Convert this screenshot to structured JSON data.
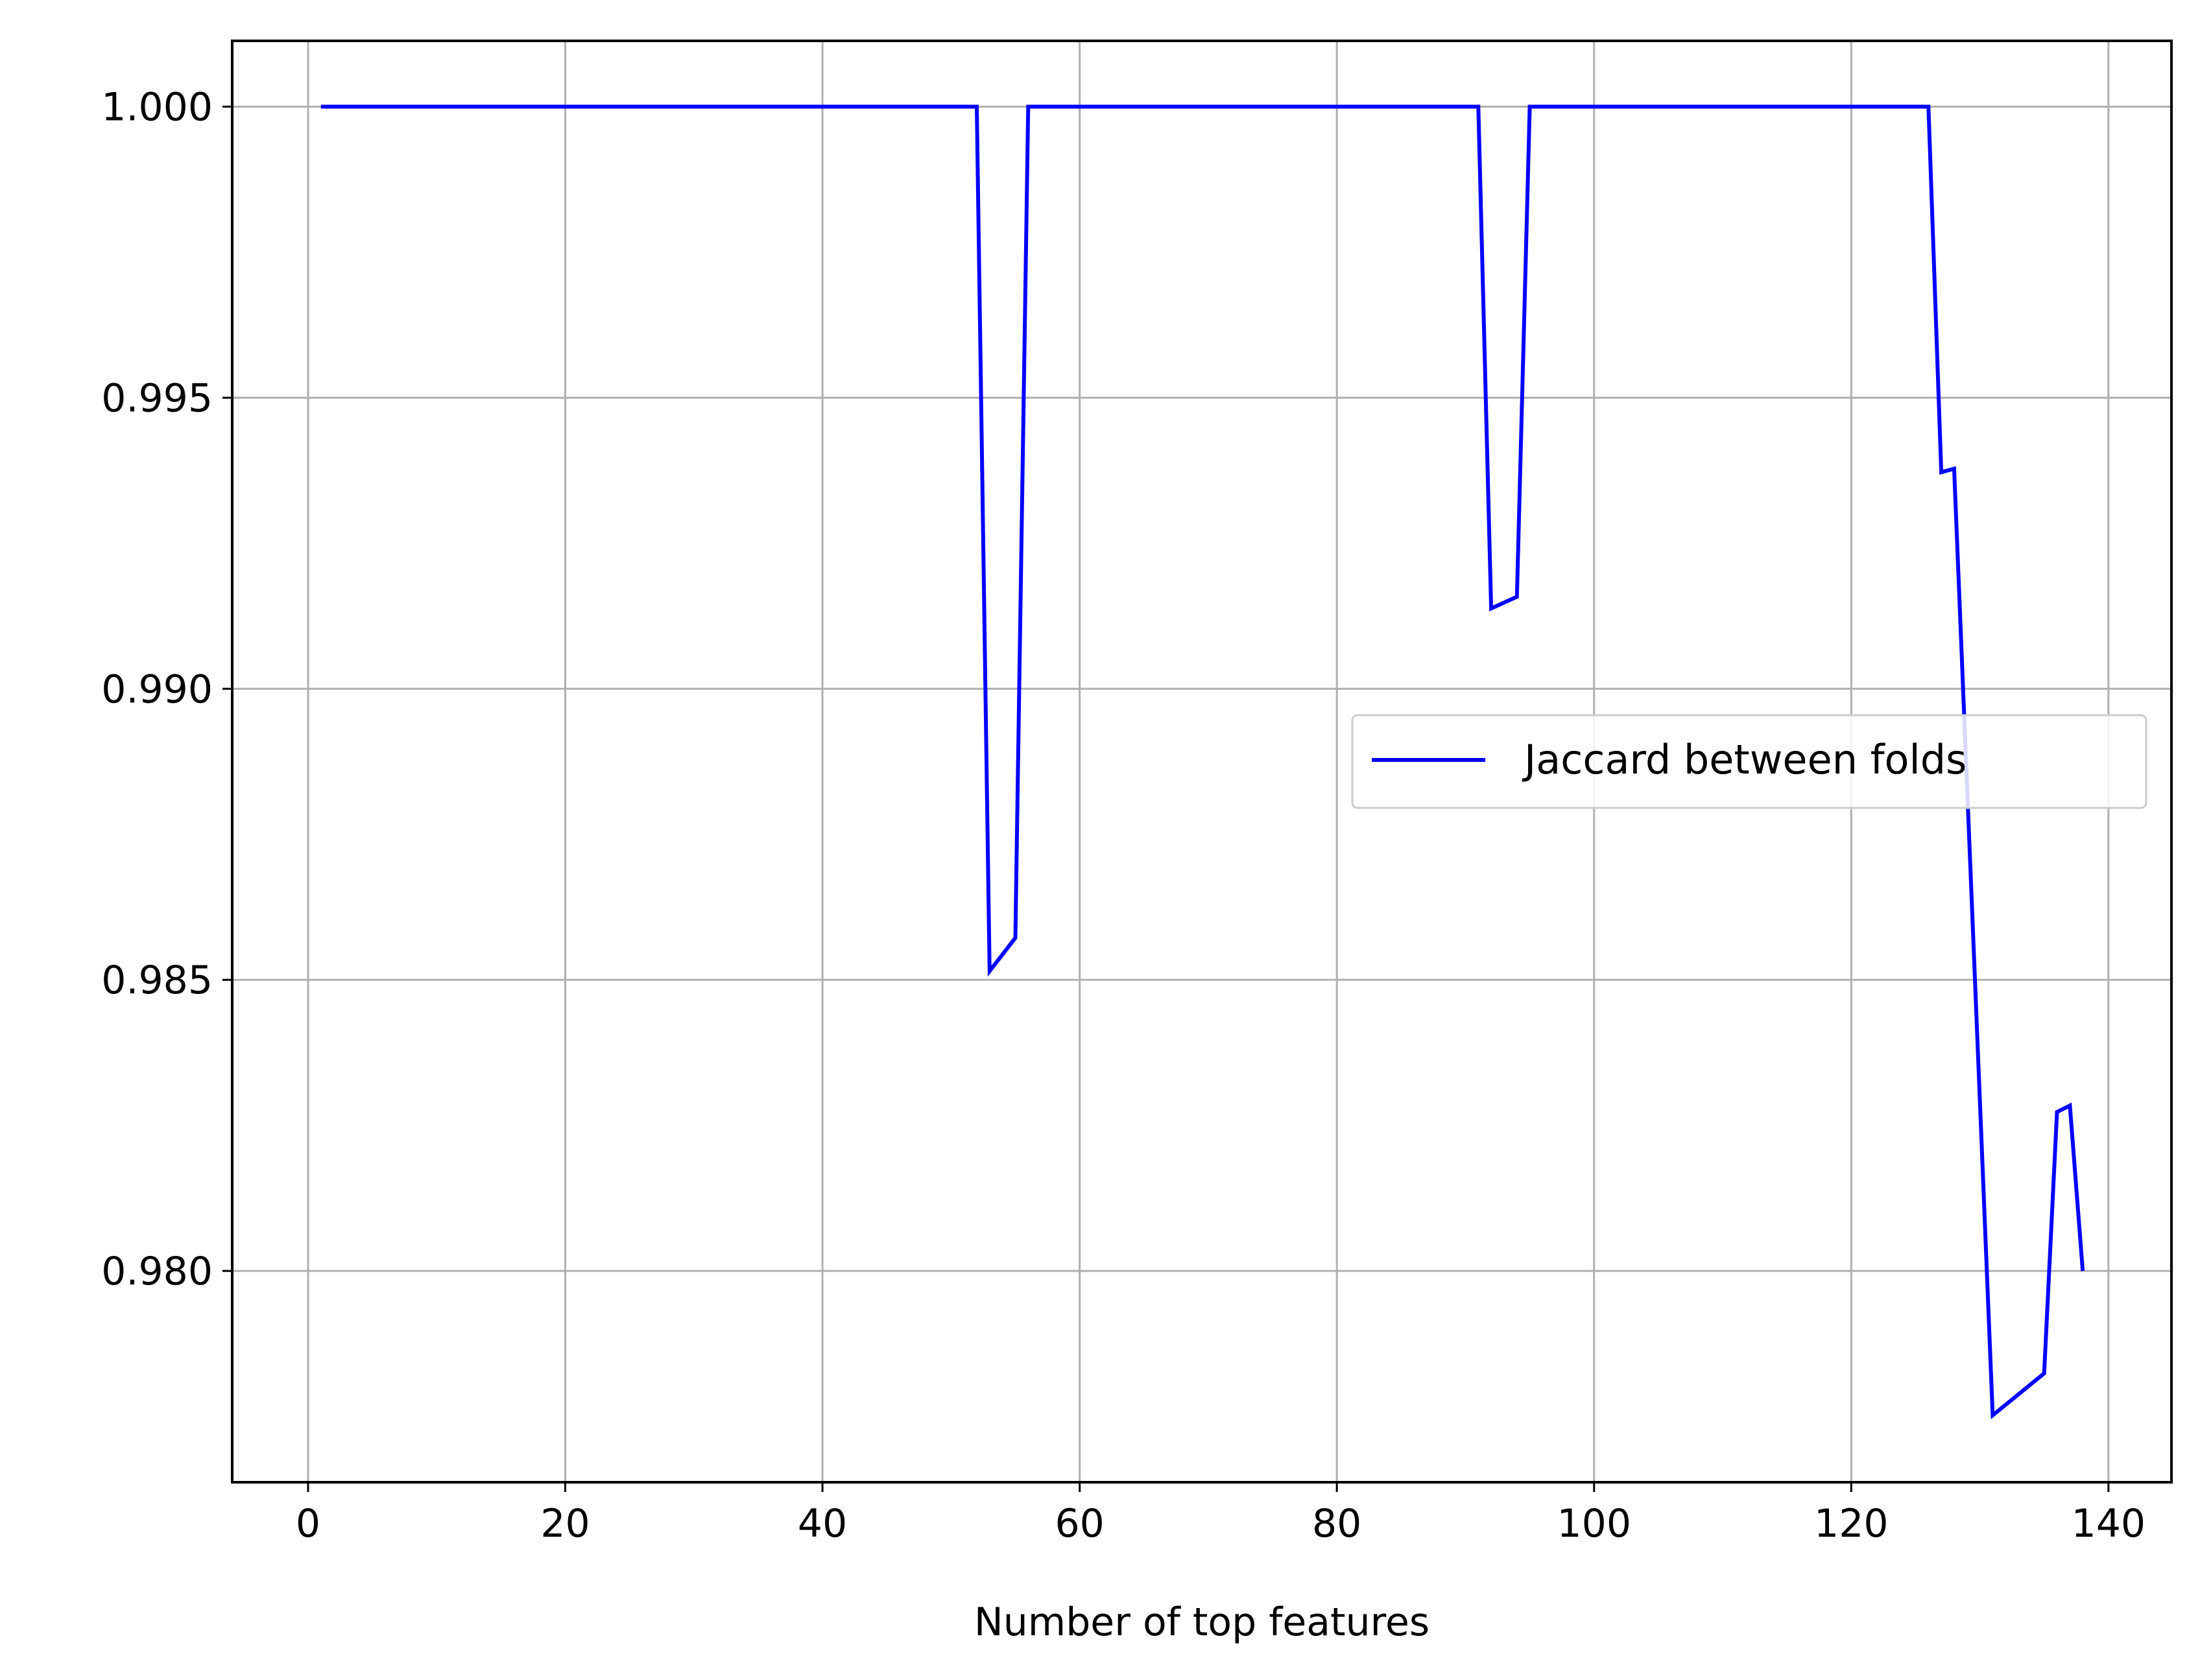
{
  "chart_data": {
    "type": "line",
    "title": "",
    "xlabel": "Number of top features",
    "ylabel": "",
    "xlim": [
      -5.9,
      144.9
    ],
    "ylim": [
      0.97637,
      1.00113
    ],
    "xticks": [
      0,
      20,
      40,
      60,
      80,
      100,
      120,
      140
    ],
    "xtick_labels": [
      "0",
      "20",
      "40",
      "60",
      "80",
      "100",
      "120",
      "140"
    ],
    "yticks": [
      0.98,
      0.985,
      0.99,
      0.995,
      1.0
    ],
    "ytick_labels": [
      "0.980",
      "0.985",
      "0.990",
      "0.995",
      "1.000"
    ],
    "grid": true,
    "legend": {
      "position": "center-right",
      "entries": [
        "Jaccard between folds"
      ]
    },
    "colors": {
      "line": "#0000ff",
      "grid": "#b0b0b0",
      "axes": "#000000",
      "background": "#ffffff"
    },
    "series": [
      {
        "name": "Jaccard between folds",
        "x": [
          1,
          52,
          53,
          55,
          56,
          91,
          92,
          94,
          95,
          126,
          127,
          128,
          131,
          135,
          136,
          137,
          138
        ],
        "y": [
          1.0,
          1.0,
          0.98515,
          0.98572,
          1.0,
          1.0,
          0.99138,
          0.99158,
          1.0,
          1.0,
          0.99372,
          0.99378,
          0.97752,
          0.97824,
          0.98273,
          0.98284,
          0.98
        ]
      }
    ]
  }
}
